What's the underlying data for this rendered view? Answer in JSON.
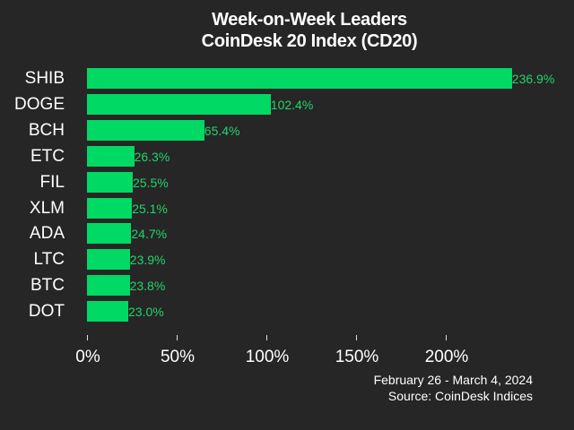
{
  "chart_data": {
    "type": "bar",
    "orientation": "horizontal",
    "title": "Week-on-Week Leaders",
    "subtitle": "CoinDesk 20 Index (CD20)",
    "categories": [
      "SHIB",
      "DOGE",
      "BCH",
      "ETC",
      "FIL",
      "XLM",
      "ADA",
      "LTC",
      "BTC",
      "DOT"
    ],
    "values": [
      236.9,
      102.4,
      65.4,
      26.3,
      25.5,
      25.1,
      24.7,
      23.9,
      23.8,
      23.0
    ],
    "value_labels": [
      "236.9%",
      "102.4%",
      "65.4%",
      "26.3%",
      "25.5%",
      "25.1%",
      "24.7%",
      "23.9%",
      "23.8%",
      "23.0%"
    ],
    "xlabel": "",
    "ylabel": "",
    "xticks": [
      0,
      50,
      100,
      150,
      200
    ],
    "xtick_labels": [
      "0%",
      "50%",
      "100%",
      "150%",
      "200%"
    ],
    "xlim": [
      0,
      236.9
    ],
    "grid": false,
    "legend": null,
    "bar_color": "#00d964",
    "label_color": "#22d46a",
    "background": "#262626",
    "annotations": [
      "February 26 - March 4, 2024",
      "Source: CoinDesk Indices"
    ]
  },
  "title": {
    "line1": "Week-on-Week Leaders",
    "line2": "CoinDesk 20 Index (CD20)"
  },
  "footer": {
    "date_range": "February 26 - March 4, 2024",
    "source": "Source: CoinDesk Indices"
  }
}
